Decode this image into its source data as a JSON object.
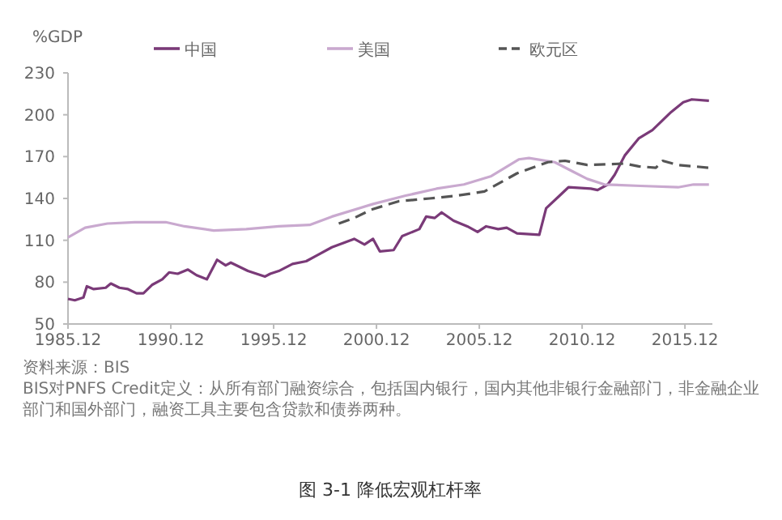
{
  "chart_data": {
    "type": "line",
    "ylabel": "%GDP",
    "legend": "top",
    "grid": false,
    "line_style": "solid",
    "marker": "none",
    "ylim": [
      50,
      230
    ],
    "yticks": [
      50,
      80,
      110,
      140,
      170,
      200,
      230
    ],
    "xlim": [
      "1985-12",
      "2017-04"
    ],
    "xticks": [
      {
        "value": "1985-12",
        "label": "1985.12"
      },
      {
        "value": "1990-12",
        "label": "1990.12"
      },
      {
        "value": "1995-12",
        "label": "1995.12"
      },
      {
        "value": "2000-12",
        "label": "2000.12"
      },
      {
        "value": "2005-12",
        "label": "2005.12"
      },
      {
        "value": "2010-12",
        "label": "2010.12"
      },
      {
        "value": "2015-12",
        "label": "2015.12"
      }
    ],
    "series": [
      {
        "name": "中国",
        "color": "#7a3a78",
        "x": [
          "1985-12",
          "1986-04",
          "1986-09",
          "1986-11",
          "1987-03",
          "1987-10",
          "1988-01",
          "1988-06",
          "1988-11",
          "1989-04",
          "1989-08",
          "1990-01",
          "1990-07",
          "1990-11",
          "1991-04",
          "1991-10",
          "1992-03",
          "1992-09",
          "1993-03",
          "1993-08",
          "1993-11",
          "1994-09",
          "1995-07",
          "1995-10",
          "1996-03",
          "1996-11",
          "1997-07",
          "1998-01",
          "1998-10",
          "1999-11",
          "2000-05",
          "2000-10",
          "2001-02",
          "2001-10",
          "2002-03",
          "2003-01",
          "2003-05",
          "2003-10",
          "2004-02",
          "2004-09",
          "2005-05",
          "2005-11",
          "2006-04",
          "2006-11",
          "2007-04",
          "2007-10",
          "2008-11",
          "2009-03",
          "2009-10",
          "2010-04",
          "2011-05",
          "2011-09",
          "2012-03",
          "2012-07",
          "2013-01",
          "2013-09",
          "2014-05",
          "2015-04",
          "2015-11",
          "2016-04",
          "2017-02"
        ],
        "values": [
          68,
          67,
          69,
          77,
          75,
          76,
          79,
          76,
          75,
          72,
          72,
          78,
          82,
          87,
          86,
          89,
          85,
          82,
          96,
          92,
          94,
          88,
          84,
          86,
          88,
          93,
          95,
          99,
          105,
          111,
          107,
          111,
          102,
          103,
          113,
          118,
          127,
          126,
          130,
          124,
          120,
          116,
          120,
          118,
          119,
          115,
          114,
          133,
          141,
          148,
          147,
          146,
          150,
          157,
          171,
          183,
          189,
          202,
          209,
          211,
          210
        ]
      },
      {
        "name": "美国",
        "color": "#c9a9cf",
        "x": [
          "1985-12",
          "1986-10",
          "1987-11",
          "1989-03",
          "1990-09",
          "1991-08",
          "1993-01",
          "1994-08",
          "1996-03",
          "1997-09",
          "1998-10",
          "2000-10",
          "2002-05",
          "2003-11",
          "2005-03",
          "2006-07",
          "2007-11",
          "2008-05",
          "2009-08",
          "2010-07",
          "2011-03",
          "2012-01",
          "2013-10",
          "2015-08",
          "2016-05",
          "2017-02"
        ],
        "values": [
          112,
          119,
          122,
          123,
          123,
          120,
          117,
          118,
          120,
          121,
          127,
          136,
          142,
          147,
          150,
          156,
          168,
          169,
          166,
          159,
          154,
          150,
          149,
          148,
          150,
          150
        ]
      },
      {
        "name": "欧元区",
        "color": "#555555",
        "line_style": "dashed",
        "x": [
          "1999-02",
          "1999-11",
          "2000-09",
          "2002-01",
          "2003-07",
          "2004-11",
          "2006-03",
          "2007-10",
          "2009-04",
          "2010-02",
          "2011-03",
          "2013-01",
          "2013-09",
          "2014-07",
          "2014-11",
          "2015-08",
          "2017-02"
        ],
        "values": [
          122,
          126,
          132,
          138,
          140,
          142,
          145,
          158,
          166,
          167,
          164,
          165,
          163,
          162,
          167,
          164,
          162
        ]
      }
    ],
    "annotations": [
      "资料来源：BIS",
      "BIS对PNFS Credit定义：从所有部门融资综合，包括国内银行，国内其他非银行金融部门，非金融企业部门和国外部门，融资工具主要包含贷款和债券两种。",
      "图 3-1 降低宏观杠杆率"
    ]
  }
}
